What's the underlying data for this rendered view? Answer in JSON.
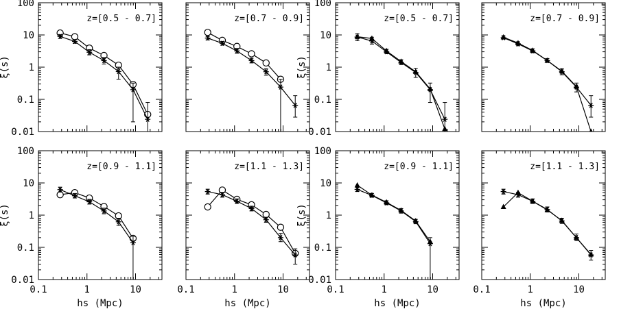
{
  "figure": {
    "xlabel": "hs (Mpc)",
    "ylabel": "ξ(s)",
    "x_ticklabels": [
      "0.1",
      "1",
      "10"
    ],
    "y_ticklabels": [
      "100",
      "10",
      "1",
      "0.1",
      "0.01"
    ]
  },
  "chart_data": [
    {
      "type": "scatter",
      "xscale": "log",
      "yscale": "log",
      "xlim": [
        0.1,
        35
      ],
      "ylim": [
        0.01,
        100
      ],
      "label": "z=[0.5 - 0.7]",
      "series": [
        {
          "marker": "circle",
          "x": [
            0.28,
            0.56,
            1.12,
            2.24,
            4.47,
            8.9,
            17.8
          ],
          "y": [
            11.5,
            8.8,
            3.9,
            2.3,
            1.15,
            0.29,
            0.034
          ],
          "err": [
            null,
            null,
            null,
            null,
            null,
            null,
            null
          ]
        },
        {
          "marker": "star",
          "x": [
            0.28,
            0.56,
            1.12,
            2.24,
            4.47,
            8.9,
            17.8
          ],
          "y": [
            9.0,
            6.3,
            2.9,
            1.6,
            0.73,
            0.2,
            0.024
          ],
          "err": [
            [
              7.8,
              10.2
            ],
            [
              5.5,
              7.2
            ],
            [
              2.4,
              3.5
            ],
            [
              1.25,
              2.0
            ],
            [
              0.42,
              1.0
            ],
            [
              0.02,
              0.32
            ],
            [
              0.01,
              0.08
            ]
          ]
        }
      ]
    },
    {
      "type": "scatter",
      "xscale": "log",
      "yscale": "log",
      "xlim": [
        0.1,
        35
      ],
      "ylim": [
        0.01,
        100
      ],
      "label": "z=[0.7 - 0.9]",
      "series": [
        {
          "marker": "circle",
          "x": [
            0.28,
            0.56,
            1.12,
            2.24,
            4.47,
            8.9
          ],
          "y": [
            12.0,
            6.8,
            4.4,
            2.6,
            1.35,
            0.42
          ],
          "err": [
            null,
            null,
            null,
            null,
            null,
            null
          ]
        },
        {
          "marker": "star",
          "x": [
            0.28,
            0.56,
            1.12,
            2.24,
            4.47,
            8.9,
            17.8
          ],
          "y": [
            8.0,
            5.5,
            3.2,
            1.6,
            0.72,
            0.24,
            0.065
          ],
          "err": [
            [
              7.0,
              9.0
            ],
            [
              4.8,
              6.3
            ],
            [
              2.7,
              3.8
            ],
            [
              1.35,
              1.9
            ],
            [
              0.56,
              0.9
            ],
            [
              0.01,
              0.42
            ],
            [
              0.028,
              0.13
            ]
          ]
        }
      ]
    },
    {
      "type": "scatter",
      "xscale": "log",
      "yscale": "log",
      "xlim": [
        0.1,
        35
      ],
      "ylim": [
        0.01,
        100
      ],
      "label": "z=[0.5 - 0.7]",
      "series": [
        {
          "marker": "triangle",
          "x": [
            0.28,
            0.56,
            1.12,
            2.24,
            4.47,
            8.9,
            17.8
          ],
          "y": [
            8.8,
            7.8,
            3.2,
            1.5,
            0.72,
            0.21,
            0.012
          ],
          "err": [
            null,
            null,
            null,
            null,
            null,
            null,
            null
          ]
        },
        {
          "marker": "star",
          "x": [
            0.28,
            0.56,
            1.12,
            2.24,
            4.47,
            8.9,
            17.8
          ],
          "y": [
            8.6,
            6.5,
            3.0,
            1.4,
            0.68,
            0.2,
            0.024
          ],
          "err": [
            [
              6.6,
              11.0
            ],
            [
              5.2,
              8.5
            ],
            [
              2.6,
              3.6
            ],
            [
              1.2,
              1.7
            ],
            [
              0.48,
              0.92
            ],
            [
              0.08,
              0.32
            ],
            [
              0.01,
              0.08
            ]
          ]
        }
      ]
    },
    {
      "type": "scatter",
      "xscale": "log",
      "yscale": "log",
      "xlim": [
        0.1,
        35
      ],
      "ylim": [
        0.01,
        100
      ],
      "label": "z=[0.7 - 0.9]",
      "series": [
        {
          "marker": "triangle",
          "x": [
            0.28,
            0.56,
            1.12,
            2.24,
            4.47,
            8.9,
            17.8
          ],
          "y": [
            8.5,
            5.6,
            3.3,
            1.6,
            0.75,
            0.25,
            0.01
          ],
          "err": [
            null,
            null,
            null,
            null,
            null,
            null,
            null
          ]
        },
        {
          "marker": "star",
          "x": [
            0.28,
            0.56,
            1.12,
            2.24,
            4.47,
            8.9,
            17.8
          ],
          "y": [
            8.2,
            5.3,
            3.2,
            1.6,
            0.72,
            0.24,
            0.065
          ],
          "err": [
            [
              7.4,
              9.2
            ],
            [
              4.6,
              6.1
            ],
            [
              2.8,
              3.7
            ],
            [
              1.4,
              1.85
            ],
            [
              0.58,
              0.9
            ],
            [
              0.17,
              0.32
            ],
            [
              0.028,
              0.13
            ]
          ]
        }
      ]
    },
    {
      "type": "scatter",
      "xscale": "log",
      "yscale": "log",
      "xlim": [
        0.1,
        35
      ],
      "ylim": [
        0.01,
        100
      ],
      "label": "z=[0.9 - 1.1]",
      "series": [
        {
          "marker": "circle",
          "x": [
            0.28,
            0.56,
            1.12,
            2.24,
            4.47,
            8.9
          ],
          "y": [
            4.3,
            5.0,
            3.4,
            1.85,
            0.95,
            0.19
          ],
          "err": [
            null,
            null,
            null,
            null,
            null,
            null
          ]
        },
        {
          "marker": "star",
          "x": [
            0.28,
            0.56,
            1.12,
            2.24,
            4.47,
            8.9
          ],
          "y": [
            6.2,
            4.0,
            2.6,
            1.35,
            0.62,
            0.14
          ],
          "err": [
            [
              5.2,
              7.4
            ],
            [
              3.4,
              4.7
            ],
            [
              2.2,
              3.1
            ],
            [
              1.1,
              1.65
            ],
            [
              0.48,
              0.8
            ],
            [
              0.01,
              0.22
            ]
          ]
        }
      ]
    },
    {
      "type": "scatter",
      "xscale": "log",
      "yscale": "log",
      "xlim": [
        0.1,
        35
      ],
      "ylim": [
        0.01,
        100
      ],
      "label": "z=[1.1 - 1.3]",
      "series": [
        {
          "marker": "circle",
          "x": [
            0.28,
            0.56,
            1.12,
            2.24,
            4.47,
            8.9,
            17.8
          ],
          "y": [
            1.8,
            6.0,
            3.1,
            2.1,
            1.05,
            0.42,
            0.065
          ],
          "err": [
            null,
            null,
            null,
            null,
            null,
            null,
            null
          ]
        },
        {
          "marker": "star",
          "x": [
            0.28,
            0.56,
            1.12,
            2.24,
            4.47,
            8.9,
            17.8
          ],
          "y": [
            5.4,
            4.3,
            2.7,
            1.6,
            0.72,
            0.2,
            0.058
          ],
          "err": [
            [
              4.5,
              6.4
            ],
            [
              3.6,
              5.1
            ],
            [
              2.3,
              3.2
            ],
            [
              1.35,
              1.9
            ],
            [
              0.6,
              0.86
            ],
            [
              0.15,
              0.27
            ],
            [
              0.03,
              0.09
            ]
          ]
        }
      ]
    },
    {
      "type": "scatter",
      "xscale": "log",
      "yscale": "log",
      "xlim": [
        0.1,
        35
      ],
      "ylim": [
        0.01,
        100
      ],
      "label": "z=[0.9 - 1.1]",
      "series": [
        {
          "marker": "triangle",
          "x": [
            0.28,
            0.56,
            1.12,
            2.24,
            4.47,
            8.9
          ],
          "y": [
            8.5,
            4.2,
            2.5,
            1.4,
            0.66,
            0.15
          ],
          "err": [
            null,
            null,
            null,
            null,
            null,
            null
          ]
        },
        {
          "marker": "star",
          "x": [
            0.28,
            0.56,
            1.12,
            2.24,
            4.47,
            8.9
          ],
          "y": [
            6.3,
            4.1,
            2.4,
            1.35,
            0.63,
            0.13
          ],
          "err": [
            [
              5.4,
              7.3
            ],
            [
              3.6,
              4.7
            ],
            [
              2.1,
              2.8
            ],
            [
              1.15,
              1.6
            ],
            [
              0.54,
              0.74
            ],
            [
              0.01,
              0.2
            ]
          ]
        }
      ]
    },
    {
      "type": "scatter",
      "xscale": "log",
      "yscale": "log",
      "xlim": [
        0.1,
        35
      ],
      "ylim": [
        0.01,
        100
      ],
      "label": "z=[1.1 - 1.3]",
      "series": [
        {
          "marker": "triangle",
          "x": [
            0.28,
            0.56,
            1.12,
            2.24,
            4.47,
            8.9,
            17.8
          ],
          "y": [
            1.8,
            5.0,
            2.7,
            1.45,
            0.68,
            0.2,
            0.06
          ],
          "err": [
            null,
            null,
            null,
            null,
            null,
            null,
            null
          ]
        },
        {
          "marker": "star",
          "x": [
            0.28,
            0.56,
            1.12,
            2.24,
            4.47,
            8.9,
            17.8
          ],
          "y": [
            5.4,
            4.3,
            2.7,
            1.5,
            0.66,
            0.2,
            0.058
          ],
          "err": [
            [
              4.5,
              6.4
            ],
            [
              3.6,
              5.1
            ],
            [
              2.3,
              3.2
            ],
            [
              1.25,
              1.8
            ],
            [
              0.55,
              0.8
            ],
            [
              0.16,
              0.26
            ],
            [
              0.04,
              0.08
            ]
          ]
        }
      ]
    }
  ]
}
